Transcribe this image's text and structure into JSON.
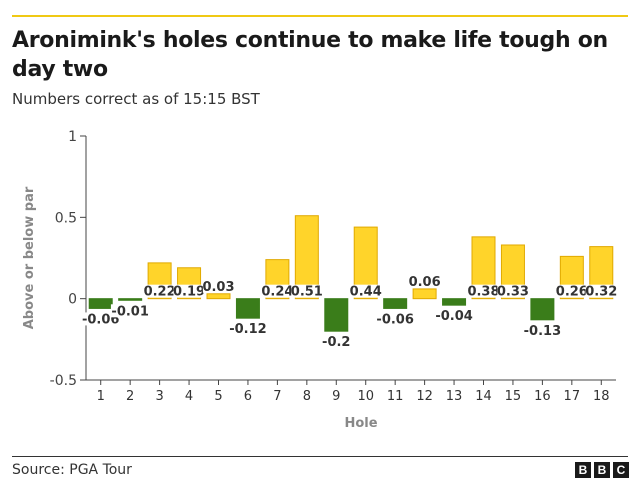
{
  "header": {
    "title": "Aronimink's holes continue to make life tough on day two",
    "subtitle": "Numbers correct as of 15:15 BST"
  },
  "footer": {
    "source": "Source: PGA Tour",
    "logo_letters": [
      "B",
      "B",
      "C"
    ]
  },
  "colors": {
    "above_par": "#ffd42a",
    "above_par_edge": "#e0a900",
    "below_par": "#3a7d1a",
    "accent_rule": "#f0c914"
  },
  "chart_data": {
    "type": "bar",
    "xlabel": "Hole",
    "ylabel": "Above or below par",
    "ylim": [
      -0.5,
      1
    ],
    "yticks": [
      -0.5,
      0,
      0.5,
      1
    ],
    "ytick_labels": [
      "-0.5",
      "0",
      "0.5",
      "1"
    ],
    "grid": false,
    "categories": [
      "1",
      "2",
      "3",
      "4",
      "5",
      "6",
      "7",
      "8",
      "9",
      "10",
      "11",
      "12",
      "13",
      "14",
      "15",
      "16",
      "17",
      "18"
    ],
    "values": [
      -0.06,
      -0.01,
      0.22,
      0.19,
      0.03,
      -0.12,
      0.24,
      0.51,
      -0.2,
      0.44,
      -0.06,
      0.06,
      -0.04,
      0.38,
      0.33,
      -0.13,
      0.26,
      0.32
    ],
    "data_labels": [
      "-0.06",
      "-0.01",
      "0.22",
      "0.19",
      "0.03",
      "-0.12",
      "0.24",
      "0.51",
      "-0.2",
      "0.44",
      "-0.06",
      "0.06",
      "-0.04",
      "0.38",
      "0.33",
      "-0.13",
      "0.26",
      "0.32"
    ]
  }
}
